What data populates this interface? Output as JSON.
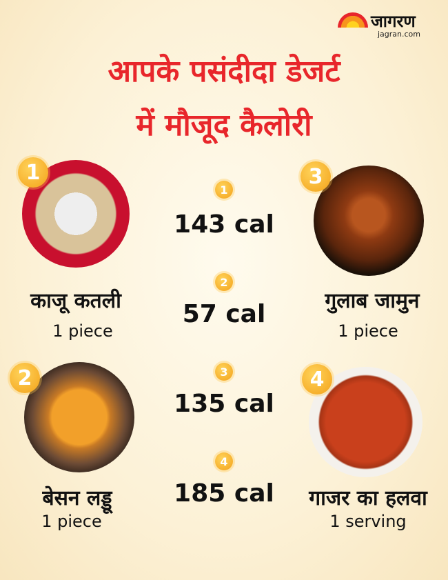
{
  "brand": {
    "name": "जागरण",
    "site": "jagran.com"
  },
  "title": {
    "line1": "आपके पसंदीदा डेजर्ट",
    "line2": "में मौजूद कैलोरी"
  },
  "items": [
    {
      "number": "1",
      "name": "काजू कतली",
      "serving": "1 piece",
      "calories": "143 cal"
    },
    {
      "number": "2",
      "name": "बेसन लड्डू",
      "serving": "1 piece",
      "calories": "57 cal"
    },
    {
      "number": "3",
      "name": "गुलाब जामुन",
      "serving": "1 piece",
      "calories": "135 cal"
    },
    {
      "number": "4",
      "name": "गाजर का हलवा",
      "serving": "1 serving",
      "calories": "185 cal"
    }
  ],
  "colors": {
    "title": "#e8262b",
    "badge": "#f3a21a"
  }
}
